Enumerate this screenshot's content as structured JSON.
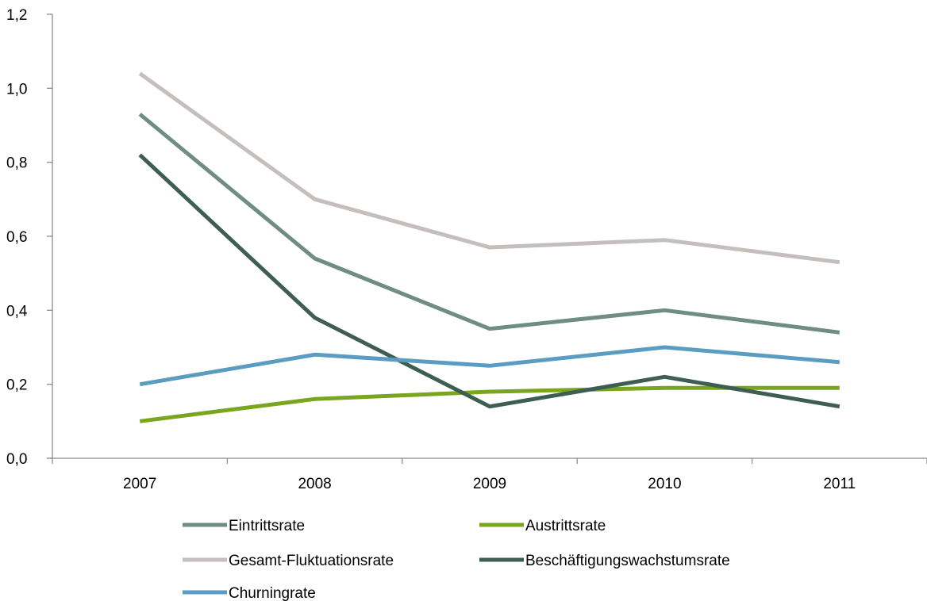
{
  "chart_data": {
    "type": "line",
    "title": "",
    "xlabel": "",
    "ylabel": "",
    "categories": [
      "2007",
      "2008",
      "2009",
      "2010",
      "2011"
    ],
    "ylim": [
      0,
      1.2
    ],
    "yticks": [
      "0,0",
      "0,2",
      "0,4",
      "0,6",
      "0,8",
      "1,0",
      "1,2"
    ],
    "grid": false,
    "legend_position": "bottom",
    "series": [
      {
        "name": "Eintrittsrate",
        "color": "#6f8d82",
        "values": [
          0.93,
          0.54,
          0.35,
          0.4,
          0.34
        ]
      },
      {
        "name": "Austrittsrate",
        "color": "#7aa51e",
        "values": [
          0.1,
          0.16,
          0.18,
          0.19,
          0.19
        ]
      },
      {
        "name": "Gesamt-Fluktuationsrate",
        "color": "#c4bfbc",
        "values": [
          1.04,
          0.7,
          0.57,
          0.59,
          0.53
        ]
      },
      {
        "name": "Beschäftigungswachstumsrate",
        "color": "#3f5e52",
        "values": [
          0.82,
          0.38,
          0.14,
          0.22,
          0.14
        ]
      },
      {
        "name": "Churningrate",
        "color": "#5b9dc0",
        "values": [
          0.2,
          0.28,
          0.25,
          0.3,
          0.26
        ]
      }
    ]
  }
}
